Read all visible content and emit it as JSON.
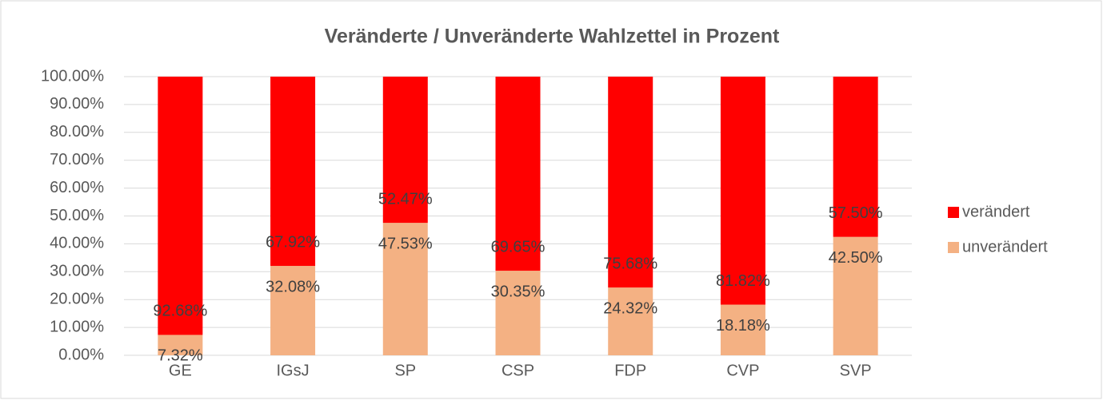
{
  "chart_data": {
    "type": "stacked_bar",
    "title": "Veränderte / Unveränderte Wahlzettel in Prozent",
    "categories": [
      "GE",
      "IGsJ",
      "SP",
      "CSP",
      "FDP",
      "CVP",
      "SVP"
    ],
    "series": [
      {
        "name": "unverändert",
        "color": "#f4b183",
        "values": [
          7.32,
          32.08,
          47.53,
          30.35,
          24.32,
          18.18,
          42.5
        ],
        "value_labels": [
          "7.32%",
          "32.08%",
          "47.53%",
          "30.35%",
          "24.32%",
          "18.18%",
          "42.50%"
        ]
      },
      {
        "name": "verändert",
        "color": "#ff0000",
        "values": [
          92.68,
          67.92,
          52.47,
          69.65,
          75.68,
          81.82,
          57.5
        ],
        "value_labels": [
          "92.68%",
          "67.92%",
          "52.47%",
          "69.65%",
          "75.68%",
          "81.82%",
          "57.50%"
        ]
      }
    ],
    "ylim": [
      0,
      100
    ],
    "yticks": [
      {
        "value": 0,
        "label": "0.00%"
      },
      {
        "value": 10,
        "label": "10.00%"
      },
      {
        "value": 20,
        "label": "20.00%"
      },
      {
        "value": 30,
        "label": "30.00%"
      },
      {
        "value": 40,
        "label": "40.00%"
      },
      {
        "value": 50,
        "label": "50.00%"
      },
      {
        "value": 60,
        "label": "60.00%"
      },
      {
        "value": 70,
        "label": "70.00%"
      },
      {
        "value": 80,
        "label": "80.00%"
      },
      {
        "value": 90,
        "label": "90.00%"
      },
      {
        "value": 100,
        "label": "100.00%"
      }
    ],
    "grid": true,
    "legend": "right"
  }
}
